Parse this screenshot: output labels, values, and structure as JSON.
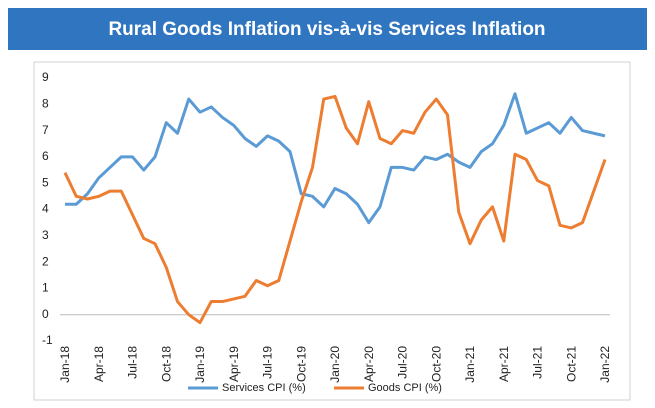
{
  "chart_data": {
    "type": "line",
    "title": "Rural Goods Inflation vis-à-vis Services Inflation",
    "categories": [
      "Jan-18",
      null,
      null,
      "Apr-18",
      null,
      null,
      "Jul-18",
      null,
      null,
      "Oct-18",
      null,
      null,
      "Jan-19",
      null,
      null,
      "Apr-19",
      null,
      null,
      "Jul-19",
      null,
      null,
      "Oct-19",
      null,
      null,
      "Jan-20",
      null,
      null,
      "Apr-20",
      null,
      null,
      "Jul-20",
      null,
      null,
      "Oct-20",
      null,
      null,
      "Jan-21",
      null,
      null,
      "Apr-21",
      null,
      null,
      "Jul-21",
      null,
      null,
      "Oct-21",
      null,
      null,
      "Jan-22"
    ],
    "series": [
      {
        "name": "Services CPI (%)",
        "color": "#5b9bd5",
        "values": [
          4.2,
          4.2,
          4.6,
          5.2,
          5.6,
          6.0,
          6.0,
          5.5,
          6.0,
          7.3,
          6.9,
          8.2,
          7.7,
          7.9,
          7.5,
          7.2,
          6.7,
          6.4,
          6.8,
          6.6,
          6.2,
          4.6,
          4.5,
          4.1,
          4.8,
          4.6,
          4.2,
          3.5,
          4.1,
          5.6,
          5.6,
          5.5,
          6.0,
          5.9,
          6.1,
          5.8,
          5.6,
          6.2,
          6.5,
          7.2,
          8.4,
          6.9,
          7.1,
          7.3,
          6.9,
          7.5,
          7.0,
          6.9,
          6.8
        ]
      },
      {
        "name": "Goods CPI (%)",
        "color": "#ed7d31",
        "values": [
          5.4,
          4.5,
          4.4,
          4.5,
          4.7,
          4.7,
          3.8,
          2.9,
          2.7,
          1.8,
          0.5,
          0.0,
          -0.3,
          0.5,
          0.5,
          0.6,
          0.7,
          1.3,
          1.1,
          1.3,
          2.8,
          4.3,
          5.6,
          8.2,
          8.3,
          7.1,
          6.5,
          8.1,
          6.7,
          6.5,
          7.0,
          6.9,
          7.7,
          8.2,
          7.6,
          3.9,
          2.7,
          3.6,
          4.1,
          2.8,
          6.1,
          5.9,
          5.1,
          4.9,
          3.4,
          3.3,
          3.5,
          4.7,
          5.9
        ]
      }
    ],
    "ylim": [
      -1,
      9
    ],
    "yticks": [
      -1,
      0,
      1,
      2,
      3,
      4,
      5,
      6,
      7,
      8,
      9
    ],
    "legend": "bottom"
  }
}
